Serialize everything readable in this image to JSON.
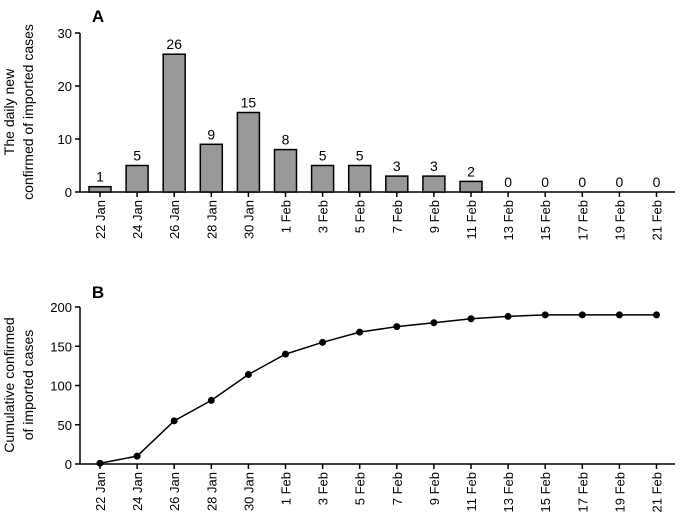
{
  "chart_data": [
    {
      "type": "bar",
      "panel_label": "A",
      "ylabel": [
        "The daily new",
        "confirmed of imported cases"
      ],
      "categories": [
        "22 Jan",
        "24 Jan",
        "26 Jan",
        "28 Jan",
        "30 Jan",
        "1 Feb",
        "3 Feb",
        "5 Feb",
        "7 Feb",
        "9 Feb",
        "11 Feb",
        "13 Feb",
        "15 Feb",
        "17 Feb",
        "19 Feb",
        "21 Feb"
      ],
      "values": [
        1,
        5,
        26,
        9,
        15,
        8,
        5,
        5,
        3,
        3,
        2,
        0,
        0,
        0,
        0,
        0
      ],
      "color": "#999999",
      "ylim": [
        0,
        30
      ],
      "yticks": [
        0,
        10,
        20,
        30
      ]
    },
    {
      "type": "line",
      "panel_label": "B",
      "ylabel": [
        "Cumulative confirmed",
        "of imported cases"
      ],
      "categories": [
        "22 Jan",
        "24 Jan",
        "26 Jan",
        "28 Jan",
        "30 Jan",
        "1 Feb",
        "3 Feb",
        "5 Feb",
        "7 Feb",
        "9 Feb",
        "11 Feb",
        "13 Feb",
        "15 Feb",
        "17 Feb",
        "19 Feb",
        "21 Feb"
      ],
      "values": [
        1,
        10,
        55,
        81,
        114,
        140,
        155,
        168,
        175,
        180,
        185,
        188,
        190,
        190,
        190,
        190
      ],
      "color": "#000000",
      "ylim": [
        0,
        200
      ],
      "yticks": [
        0,
        50,
        100,
        150,
        200
      ]
    }
  ]
}
